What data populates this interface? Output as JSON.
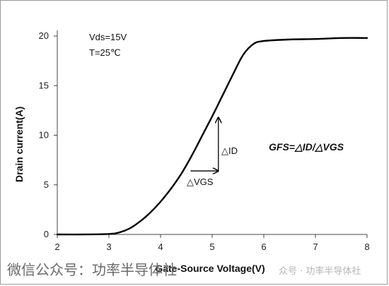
{
  "chart_data": {
    "type": "line",
    "xlabel": "Gate-Source Voltage(V)",
    "ylabel": "Drain current(A)",
    "xlim": [
      2,
      8
    ],
    "ylim": [
      0,
      20
    ],
    "xticks": [
      "2",
      "3",
      "4",
      "5",
      "6",
      "7",
      "8"
    ],
    "yticks": [
      "0",
      "5",
      "10",
      "15",
      "20"
    ],
    "grid": false,
    "series": [
      {
        "x": [
          2.0,
          2.5,
          3.0,
          3.2,
          3.4,
          3.6,
          3.8,
          4.0,
          4.2,
          4.4,
          4.6,
          4.8,
          5.0,
          5.2,
          5.4,
          5.6,
          5.8,
          6.0,
          6.5,
          7.0,
          7.5,
          8.0
        ],
        "y": [
          0.0,
          0.0,
          0.05,
          0.2,
          0.6,
          1.3,
          2.2,
          3.3,
          4.6,
          6.1,
          7.9,
          9.9,
          11.9,
          14.0,
          16.1,
          18.1,
          19.2,
          19.5,
          19.65,
          19.7,
          19.8,
          19.8
        ],
        "color": "#000000"
      }
    ],
    "annotations": {
      "conditions": [
        "Vds=15V",
        "T=25℃"
      ],
      "formula": "GFS=△ID/△VGS",
      "delta_id": "△ID",
      "delta_vgs": "△VGS"
    }
  },
  "watermark": {
    "left": "微信公众号：功率半导体社",
    "right": "众号 · 功率半导体社"
  }
}
